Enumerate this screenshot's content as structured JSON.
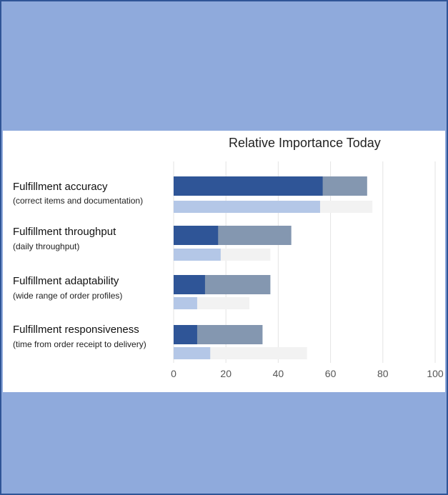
{
  "chart_data": {
    "type": "bar",
    "title": "Relative Importance Today",
    "categories": [
      {
        "label": "Fulfillment accuracy",
        "sub": "(correct items and documentation)"
      },
      {
        "label": "Fulfillment throughput",
        "sub": "(daily throughput)"
      },
      {
        "label": "Fulfillment adaptability",
        "sub": "(wide range of order profiles)"
      },
      {
        "label": "Fulfillment responsiveness",
        "sub": "(time from order receipt to delivery)"
      }
    ],
    "series": [
      {
        "values": [
          57,
          17,
          12,
          9
        ],
        "color": "#2f5597",
        "row": "upper",
        "stack": 1
      },
      {
        "values": [
          74,
          45,
          37,
          34
        ],
        "color": "#8497b0",
        "row": "upper",
        "stack": 0
      },
      {
        "values": [
          56,
          18,
          9,
          14
        ],
        "color": "#b4c7e7",
        "row": "lower",
        "stack": 1
      },
      {
        "values": [
          76,
          37,
          29,
          51
        ],
        "color": "#f2f2f2",
        "row": "lower",
        "stack": 0
      }
    ],
    "xlim": [
      0,
      100
    ],
    "xticks": [
      0,
      20,
      40,
      60,
      80,
      100
    ],
    "grid": true,
    "legend": "none"
  },
  "colors": {
    "outer_background": "#8faadc",
    "border": "#2f5597",
    "panel": "#ffffff"
  }
}
